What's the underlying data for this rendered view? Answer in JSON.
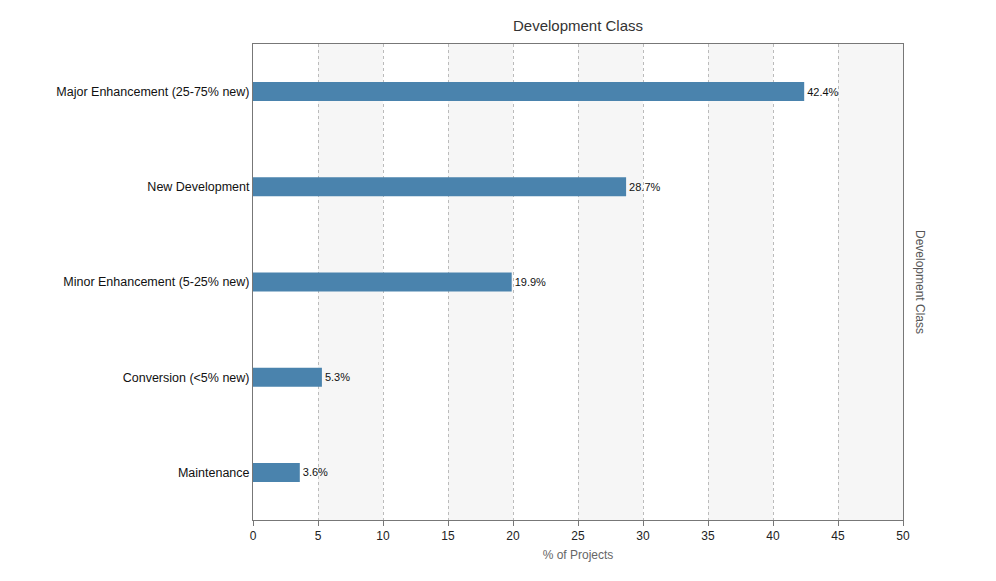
{
  "chart_data": {
    "type": "bar",
    "title": "Development Class",
    "orientation": "horizontal",
    "categories": [
      "Major Enhancement (25-75% new)",
      "New Development",
      "Minor Enhancement (5-25% new)",
      "Conversion (<5% new)",
      "Maintenance"
    ],
    "values": [
      42.4,
      28.7,
      19.9,
      5.3,
      3.6
    ],
    "value_labels": [
      "42.4%",
      "28.7%",
      "19.9%",
      "5.3%",
      "3.6%"
    ],
    "data_labels": true,
    "color": "#4a83ad",
    "xlabel": "% of Projects",
    "ylabel": "Development Class",
    "xlim": [
      0,
      50
    ],
    "xticks": [
      0,
      5,
      10,
      15,
      20,
      25,
      30,
      35,
      40,
      45,
      50
    ],
    "grid": true
  }
}
